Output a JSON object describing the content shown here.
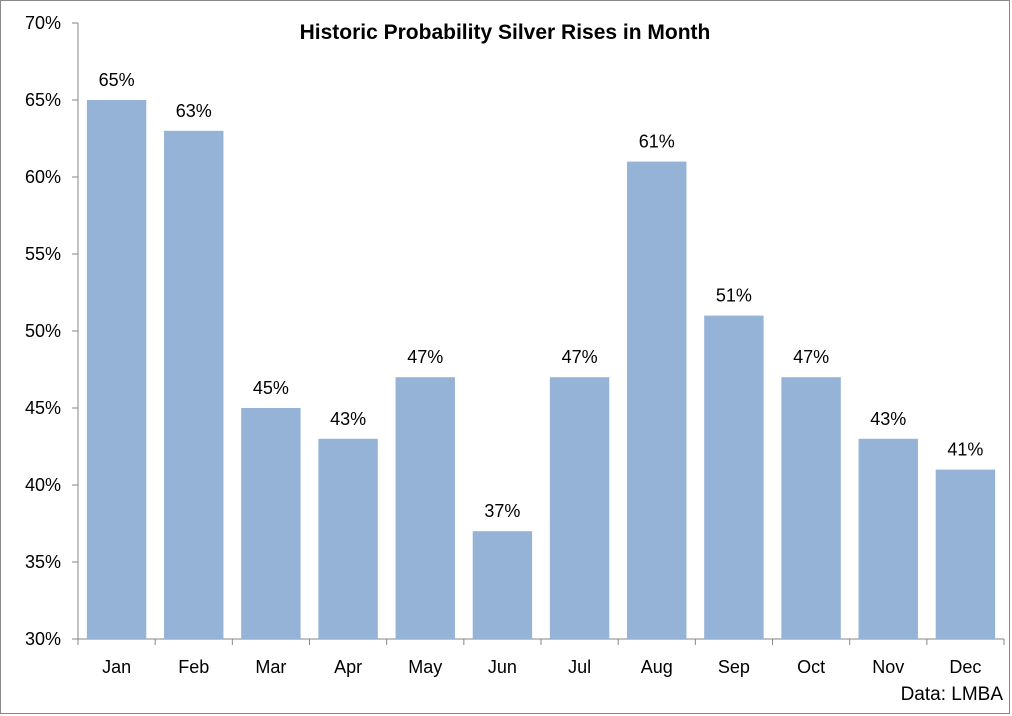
{
  "chart_data": {
    "type": "bar",
    "title": "Historic Probability Silver Rises in Month",
    "categories": [
      "Jan",
      "Feb",
      "Mar",
      "Apr",
      "May",
      "Jun",
      "Jul",
      "Aug",
      "Sep",
      "Oct",
      "Nov",
      "Dec"
    ],
    "values": [
      65,
      63,
      45,
      43,
      47,
      37,
      47,
      61,
      51,
      47,
      43,
      41
    ],
    "data_labels": [
      "65%",
      "63%",
      "45%",
      "43%",
      "47%",
      "37%",
      "47%",
      "61%",
      "51%",
      "47%",
      "43%",
      "41%"
    ],
    "y_ticks": [
      30,
      35,
      40,
      45,
      50,
      55,
      60,
      65,
      70
    ],
    "y_tick_labels": [
      "30%",
      "35%",
      "40%",
      "45%",
      "50%",
      "55%",
      "60%",
      "65%",
      "70%"
    ],
    "ylim": [
      30,
      70
    ],
    "xlabel": "",
    "ylabel": "",
    "grid": false,
    "legend": "none",
    "bar_color": "#95b3d7",
    "source_note": "Data: LMBA"
  }
}
